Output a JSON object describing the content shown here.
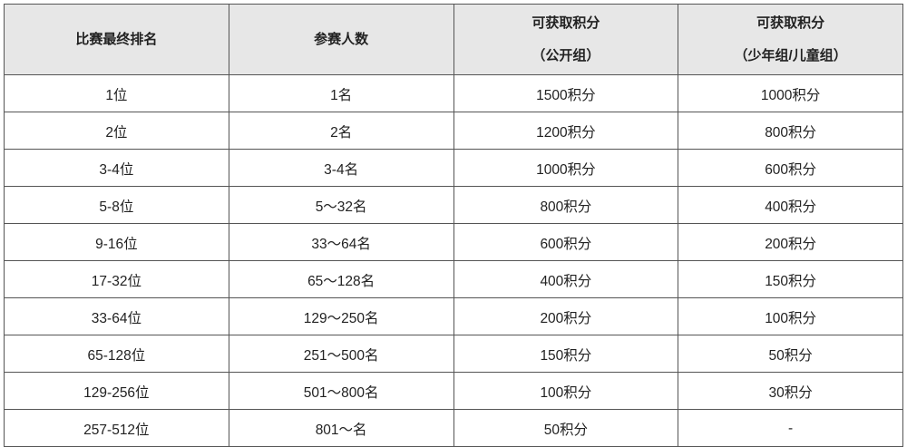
{
  "headers": [
    [
      "比赛最终排名"
    ],
    [
      "参赛人数"
    ],
    [
      "可获取积分",
      "（公开组）"
    ],
    [
      "可获取积分",
      "（少年组/儿童组）"
    ]
  ],
  "rows": [
    [
      "1位",
      "1名",
      "1500积分",
      "1000积分"
    ],
    [
      "2位",
      "2名",
      "1200积分",
      "800积分"
    ],
    [
      "3-4位",
      "3-4名",
      "1000积分",
      "600积分"
    ],
    [
      "5-8位",
      "5～32名",
      "800积分",
      "400积分"
    ],
    [
      "9-16位",
      "33～64名",
      "600积分",
      "200积分"
    ],
    [
      "17-32位",
      "65～128名",
      "400积分",
      "150积分"
    ],
    [
      "33-64位",
      "129～250名",
      "200积分",
      "100积分"
    ],
    [
      "65-128位",
      "251～500名",
      "150积分",
      "50积分"
    ],
    [
      "129-256位",
      "501～800名",
      "100积分",
      "30积分"
    ],
    [
      "257-512位",
      "801～名",
      "50积分",
      "-"
    ]
  ],
  "colors": {
    "header_bg": "#e7e7e7",
    "border": "#555555"
  }
}
